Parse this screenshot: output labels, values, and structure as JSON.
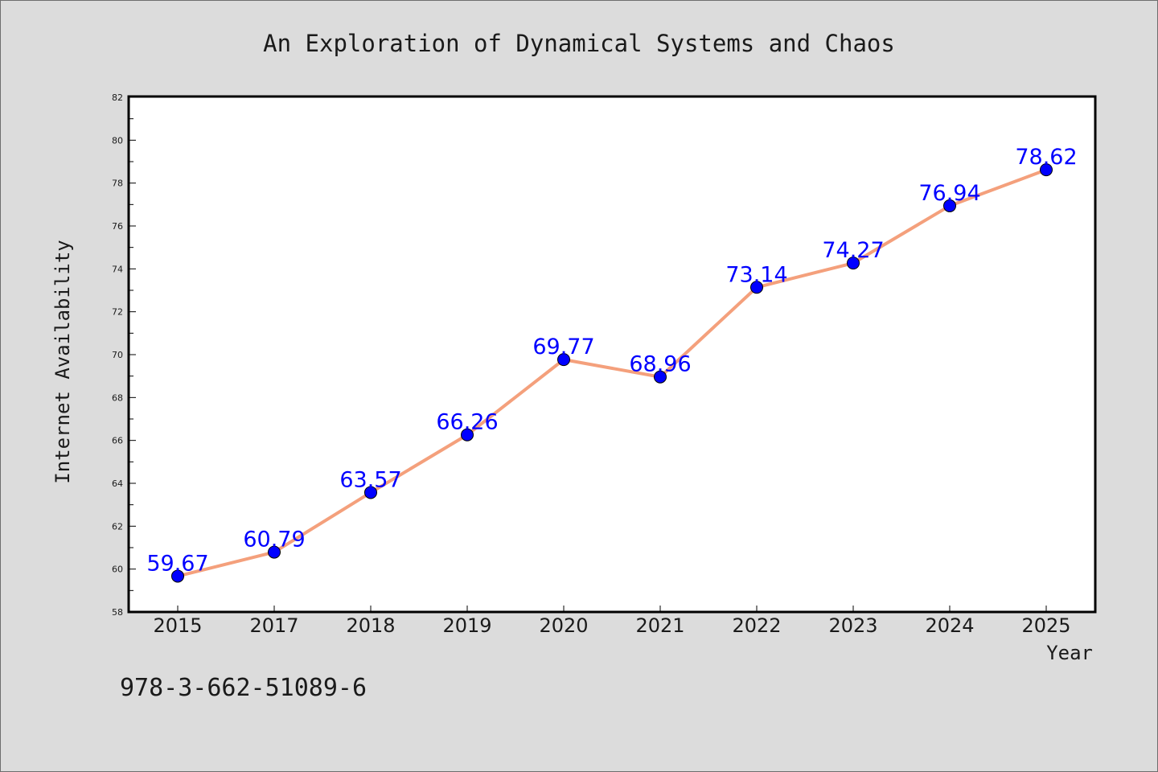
{
  "chart_data": {
    "type": "line",
    "title": "An Exploration of Dynamical Systems and Chaos",
    "xlabel": "Year",
    "ylabel": "Internet Availability",
    "categories": [
      "2015",
      "2017",
      "2018",
      "2019",
      "2020",
      "2021",
      "2022",
      "2023",
      "2024",
      "2025"
    ],
    "series": [
      {
        "values": [
          59.67,
          60.79,
          63.57,
          66.26,
          69.77,
          68.96,
          73.14,
          74.27,
          76.94,
          78.62
        ],
        "data_labels": [
          "59.67",
          "60.79",
          "63.57",
          "66.26",
          "69.77",
          "68.96",
          "73.14",
          "74.27",
          "76.94",
          "78.62"
        ]
      }
    ],
    "ylim": [
      58,
      82
    ],
    "yticks": [
      "58",
      "60",
      "62",
      "64",
      "66",
      "68",
      "70",
      "72",
      "74",
      "76",
      "78",
      "80",
      "82"
    ],
    "grid": false,
    "legend": "none"
  },
  "annotation": "978-3-662-51089-6",
  "colors": {
    "background": "#dcdcdc",
    "plot_area": "#ffffff",
    "line": "#f4a07c",
    "marker": "#0000ff",
    "data_label": "#0000ff",
    "text": "#1a1a1a"
  }
}
